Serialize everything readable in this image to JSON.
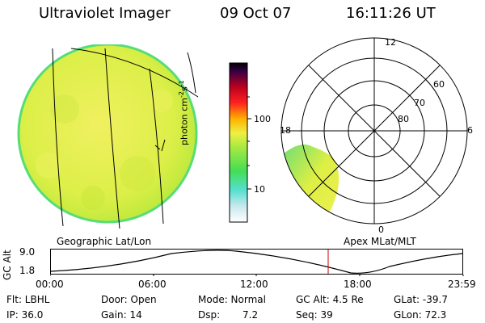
{
  "header": {
    "instrument": "Ultraviolet Imager",
    "date": "09 Oct 07",
    "time": "16:11:26 UT"
  },
  "colorbar": {
    "label": "photon cm^-2 s^-1",
    "ticks": [
      "100",
      "10"
    ]
  },
  "polar_plot": {
    "mlt_labels": [
      "12",
      "18",
      "6",
      "0"
    ],
    "lat_labels": [
      "60",
      "70",
      "80"
    ]
  },
  "panel_labels": {
    "left": "Geographic Lat/Lon",
    "right": "Apex MLat/MLT"
  },
  "altitude_plot": {
    "ylabel": "GC Alt",
    "ymax": "9.0",
    "ymin": "1.8",
    "xticks": [
      "00:00",
      "06:00",
      "12:00",
      "18:00",
      "23:59"
    ],
    "marker_time": "16:11"
  },
  "info": {
    "row1": {
      "filter": "Flt: LBHL",
      "door": "Door: Open",
      "mode": "Mode: Normal",
      "gc_alt": "GC Alt: 4.5 Re",
      "glat": "GLat: -39.7"
    },
    "row2": {
      "ip": "IP: 36.0",
      "gain": "Gain: 14",
      "dsp_label": "Dsp:",
      "dsp_value": "7.2",
      "seq": "Seq: 39",
      "glon": "GLon: 72.3"
    }
  },
  "colors": {
    "image_base": "#d8ee44",
    "image_edge": "#55dd77",
    "marker_line": "#cc0000"
  }
}
